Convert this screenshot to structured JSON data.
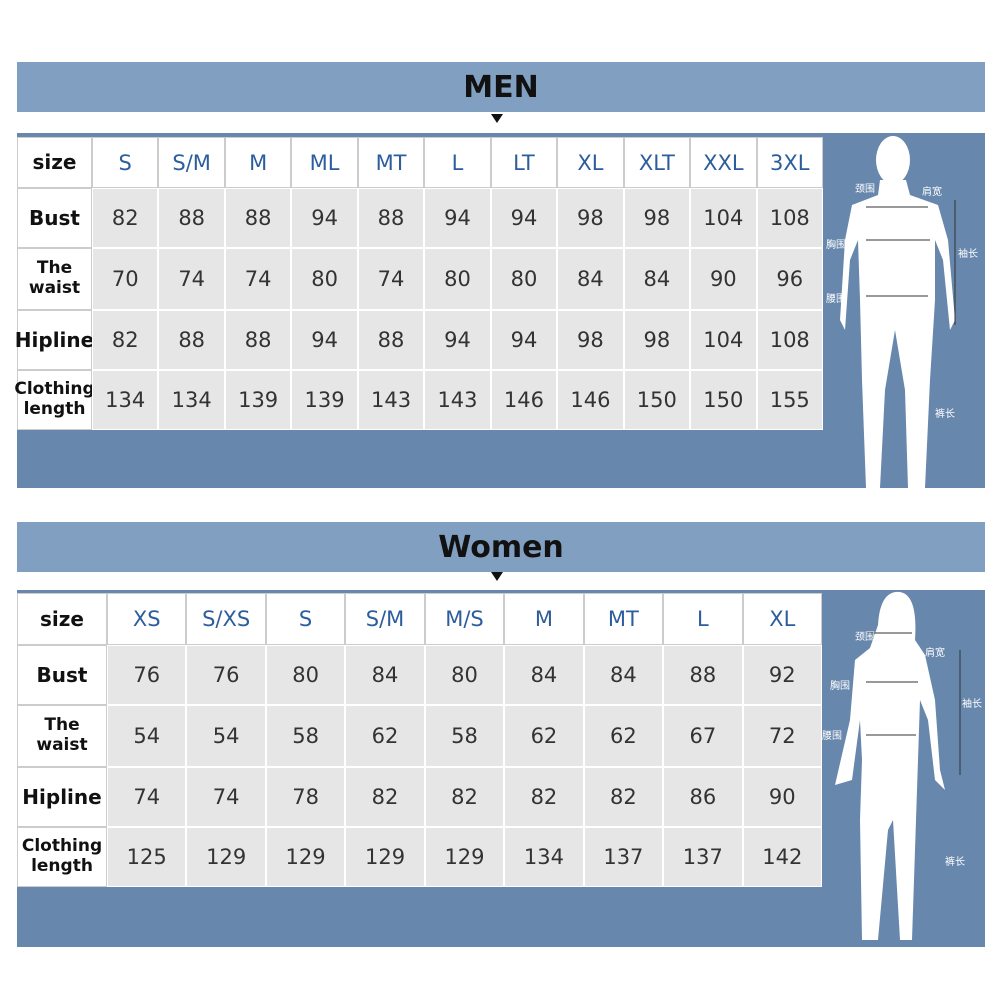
{
  "men": {
    "title": "MEN",
    "header": [
      "size",
      "S",
      "S/M",
      "M",
      "ML",
      "MT",
      "L",
      "LT",
      "XL",
      "XLT",
      "XXL",
      "3XL"
    ],
    "rows": [
      [
        "Bust",
        82,
        88,
        88,
        94,
        88,
        94,
        94,
        98,
        98,
        104,
        108
      ],
      [
        "The waist",
        70,
        74,
        74,
        80,
        74,
        80,
        80,
        84,
        84,
        90,
        96
      ],
      [
        "Hipline",
        82,
        88,
        88,
        94,
        88,
        94,
        94,
        98,
        98,
        104,
        108
      ],
      [
        "Clothing length",
        134,
        134,
        139,
        139,
        143,
        143,
        146,
        146,
        150,
        150,
        155
      ]
    ],
    "figure_labels": [
      "颈围",
      "肩宽",
      "胸围",
      "袖长",
      "腰围",
      "裤长"
    ]
  },
  "women": {
    "title": "Women",
    "header": [
      "size",
      "XS",
      "S/XS",
      "S",
      "S/M",
      "M/S",
      "M",
      "MT",
      "L",
      "XL"
    ],
    "rows": [
      [
        "Bust",
        76,
        76,
        80,
        84,
        80,
        84,
        84,
        88,
        92
      ],
      [
        "The waist",
        54,
        54,
        58,
        62,
        58,
        62,
        62,
        67,
        72
      ],
      [
        "Hipline",
        74,
        74,
        78,
        82,
        82,
        82,
        82,
        86,
        90
      ],
      [
        "Clothing length",
        125,
        129,
        129,
        129,
        129,
        134,
        137,
        137,
        142
      ]
    ],
    "figure_labels": [
      "颈围",
      "肩宽",
      "胸围",
      "袖长",
      "腰围",
      "裤长"
    ]
  }
}
